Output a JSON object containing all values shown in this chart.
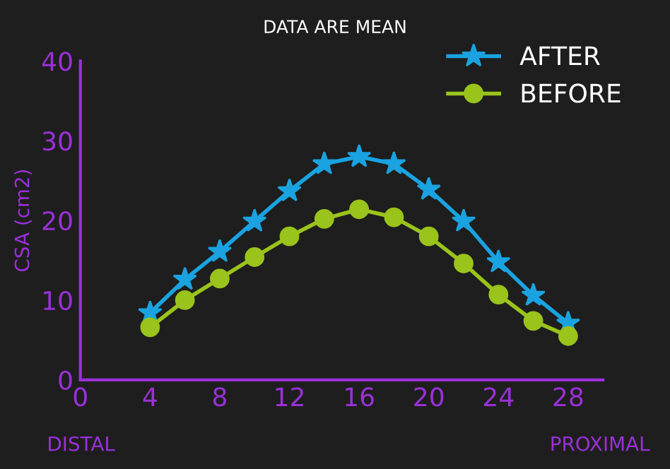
{
  "chart_data": {
    "type": "line",
    "title": "DATA ARE MEAN",
    "ylabel": "CSA (cm2)",
    "annotations": [
      "DISTAL",
      "PROXIMAL"
    ],
    "x": [
      4,
      6,
      8,
      10,
      12,
      14,
      16,
      18,
      20,
      22,
      24,
      26,
      28
    ],
    "series": [
      {
        "name": "AFTER",
        "color": "#1aa3e0",
        "marker": "star",
        "values": [
          8.4,
          12.6,
          16.1,
          19.9,
          23.7,
          27.1,
          28.0,
          27.1,
          23.9,
          19.9,
          14.8,
          10.6,
          7.1
        ]
      },
      {
        "name": "BEFORE",
        "color": "#9ac31c",
        "marker": "circle",
        "values": [
          6.6,
          10.0,
          12.7,
          15.4,
          18.0,
          20.2,
          21.4,
          20.4,
          18.0,
          14.6,
          10.7,
          7.4,
          5.5
        ]
      }
    ],
    "xlim": [
      0,
      30
    ],
    "xticks": [
      0,
      4,
      8,
      12,
      16,
      20,
      24,
      28
    ],
    "ylim": [
      0,
      40
    ],
    "yticks": [
      0,
      10,
      20,
      30,
      40
    ],
    "grid": false,
    "legend": "top right",
    "line_style": "solid"
  }
}
